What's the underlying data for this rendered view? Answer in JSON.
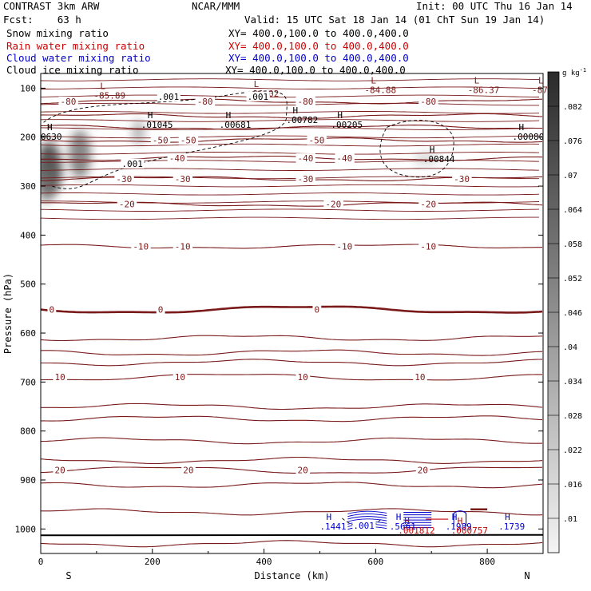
{
  "header": {
    "title_left": "CONTRAST  3km ARW",
    "title_center": "NCAR/MMM",
    "init": "Init: 00 UTC Thu 16 Jan 14",
    "fcst": "Fcst:    63 h",
    "valid": "Valid: 15 UTC Sat 18 Jan 14 (01 ChT Sun 19 Jan 14)"
  },
  "fields": [
    {
      "name": "Snow mixing ratio",
      "xy": "XY= 400.0,100.0 to 400.0,400.0",
      "color": "#000000"
    },
    {
      "name": "Rain water mixing ratio",
      "xy": "XY= 400.0,100.0 to 400.0,400.0",
      "color": "#cc0000"
    },
    {
      "name": "Cloud water mixing ratio",
      "xy": "XY= 400.0,100.0 to 400.0,400.0",
      "color": "#0000cc"
    },
    {
      "name": "Cloud ice mixing ratio",
      "xy": "XY= 400.0,100.0 to 400.0,400.0",
      "color": "#000000"
    }
  ],
  "chart_data": {
    "type": "heatmap",
    "xlabel": "Distance (km)",
    "ylabel": "Pressure (hPa)",
    "xlim": [
      0,
      900
    ],
    "ylim": [
      1050,
      70
    ],
    "x_ticks": [
      0,
      200,
      400,
      600,
      800
    ],
    "y_ticks": [
      100,
      200,
      300,
      400,
      500,
      600,
      700,
      800,
      900,
      1000
    ],
    "x_end_labels": {
      "left": "S",
      "right": "N"
    },
    "colorbar": {
      "unit": "g kg",
      "unit_exponent": "-1",
      "ticks": [
        0.01,
        0.016,
        0.022,
        0.028,
        0.034,
        0.04,
        0.046,
        0.052,
        0.058,
        0.064,
        0.07,
        0.076,
        0.082
      ],
      "tick_labels": [
        ".01",
        ".016",
        ".022",
        ".028",
        ".034",
        ".04",
        ".046",
        ".052",
        ".058",
        ".064",
        ".07",
        ".076",
        ".082"
      ],
      "range": [
        0.004,
        0.088
      ],
      "colors": {
        "low": "#f2f2f2",
        "high": "#2a2a2a"
      }
    },
    "temperature_contours": {
      "color": "#7a1a1a",
      "label_color": "#7a1a1a",
      "levels": [
        {
          "value": -80,
          "p": 127,
          "labels": [
            {
              "x": 35,
              "text": "-80"
            },
            {
              "x": 280,
              "text": "-80"
            },
            {
              "x": 460,
              "text": "-80"
            },
            {
              "x": 680,
              "text": "-80"
            }
          ]
        },
        {
          "value": -70,
          "p": 157,
          "labels": []
        },
        {
          "value": -60,
          "p": 180,
          "labels": []
        },
        {
          "value": -50,
          "p": 206,
          "labels": [
            {
              "x": 200,
              "text": "-50"
            },
            {
              "x": 250,
              "text": "-50"
            },
            {
              "x": 480,
              "text": "-50"
            }
          ]
        },
        {
          "value": -40,
          "p": 243,
          "labels": [
            {
              "x": 230,
              "text": "-40"
            },
            {
              "x": 460,
              "text": "-40"
            },
            {
              "x": 530,
              "text": "-40"
            }
          ]
        },
        {
          "value": -30,
          "p": 285,
          "labels": [
            {
              "x": 135,
              "text": "-30"
            },
            {
              "x": 240,
              "text": "-30"
            },
            {
              "x": 460,
              "text": "-30"
            },
            {
              "x": 740,
              "text": "-30"
            }
          ]
        },
        {
          "value": -20,
          "p": 337,
          "labels": [
            {
              "x": 140,
              "text": "-20"
            },
            {
              "x": 510,
              "text": "-20"
            },
            {
              "x": 680,
              "text": "-20"
            }
          ]
        },
        {
          "value": -10,
          "p": 423,
          "labels": [
            {
              "x": 165,
              "text": "-10"
            },
            {
              "x": 240,
              "text": "-10"
            },
            {
              "x": 530,
              "text": "-10"
            },
            {
              "x": 680,
              "text": "-10"
            }
          ]
        },
        {
          "value": 0,
          "p": 552,
          "bold": true,
          "labels": [
            {
              "x": 15,
              "text": "0"
            },
            {
              "x": 210,
              "text": "0"
            },
            {
              "x": 490,
              "text": "0"
            }
          ]
        },
        {
          "value": 10,
          "p": 690,
          "labels": [
            {
              "x": 25,
              "text": "10"
            },
            {
              "x": 240,
              "text": "10"
            },
            {
              "x": 460,
              "text": "10"
            },
            {
              "x": 670,
              "text": "10"
            }
          ]
        },
        {
          "value": 20,
          "p": 880,
          "labels": [
            {
              "x": 25,
              "text": "20"
            },
            {
              "x": 255,
              "text": "20"
            },
            {
              "x": 460,
              "text": "20"
            },
            {
              "x": 675,
              "text": "20"
            }
          ]
        }
      ]
    },
    "extrema": [
      {
        "kind": "L",
        "x": 95,
        "p": 108,
        "value": "-85.89",
        "color": "#7a1a1a"
      },
      {
        "kind": "L",
        "x": 370,
        "p": 104,
        "value": "-86.02",
        "color": "#7a1a1a"
      },
      {
        "kind": "L",
        "x": 580,
        "p": 97,
        "value": "-84.88",
        "color": "#7a1a1a"
      },
      {
        "kind": "L",
        "x": 765,
        "p": 97,
        "value": "-86.37",
        "color": "#7a1a1a"
      },
      {
        "kind": "L",
        "x": 880,
        "p": 97,
        "value": "-87",
        "color": "#7a1a1a"
      },
      {
        "kind": "H",
        "x": 0,
        "p": 192,
        "value": "0630",
        "color": "#000000"
      },
      {
        "kind": "H",
        "x": 180,
        "p": 168,
        "value": ".01045",
        "color": "#000000"
      },
      {
        "kind": "H",
        "x": 320,
        "p": 168,
        "value": ".00681",
        "color": "#000000"
      },
      {
        "kind": "H",
        "x": 440,
        "p": 158,
        "value": ".00782",
        "color": "#000000"
      },
      {
        "kind": "H",
        "x": 520,
        "p": 168,
        "value": ".00205",
        "color": "#000000"
      },
      {
        "kind": "H",
        "x": 685,
        "p": 238,
        "value": ".00844",
        "color": "#000000"
      },
      {
        "kind": "H",
        "x": 845,
        "p": 192,
        "value": ".00080",
        "color": "#000000"
      },
      {
        "kind": "H",
        "x": 500,
        "p": 988,
        "value": ".1441",
        "color": "#0000cc"
      },
      {
        "kind": "H",
        "x": 625,
        "p": 988,
        "value": ".5661",
        "color": "#0000cc"
      },
      {
        "kind": "H",
        "x": 725,
        "p": 988,
        "value": ".1989",
        "color": "#0000cc"
      },
      {
        "kind": "H",
        "x": 820,
        "p": 988,
        "value": ".1739",
        "color": "#0000cc"
      },
      {
        "kind": "H",
        "x": 640,
        "p": 996,
        "value": ".001812",
        "color": "#cc0000"
      },
      {
        "kind": "H",
        "x": 735,
        "p": 996,
        "value": ".000757",
        "color": "#cc0000"
      }
    ],
    "contour_value_labels": [
      {
        "x": 210,
        "p": 117,
        "text": ".001",
        "color": "#000000"
      },
      {
        "x": 370,
        "p": 117,
        "text": ".001",
        "color": "#000000"
      },
      {
        "x": 145,
        "p": 254,
        "text": ".001",
        "color": "#000000"
      },
      {
        "x": 560,
        "p": 993,
        "text": ".001",
        "color": "#0000cc"
      }
    ]
  }
}
